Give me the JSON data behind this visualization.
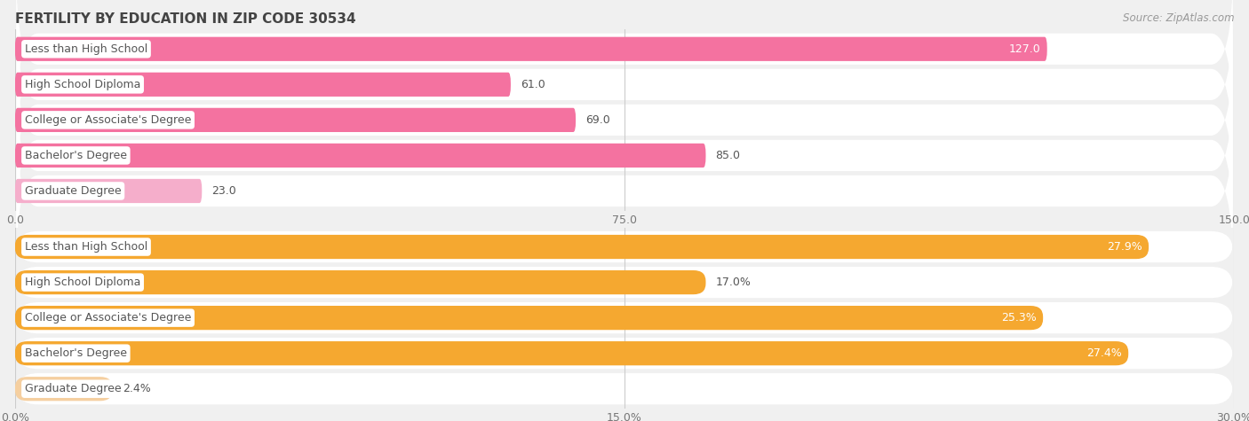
{
  "title": "FERTILITY BY EDUCATION IN ZIP CODE 30534",
  "source": "Source: ZipAtlas.com",
  "top_chart": {
    "categories": [
      "Less than High School",
      "High School Diploma",
      "College or Associate's Degree",
      "Bachelor's Degree",
      "Graduate Degree"
    ],
    "values": [
      127.0,
      61.0,
      69.0,
      85.0,
      23.0
    ],
    "value_labels": [
      "127.0",
      "61.0",
      "69.0",
      "85.0",
      "23.0"
    ],
    "bar_color": "#F472A0",
    "light_bar_color": "#F5AECB",
    "xlim": [
      0,
      150
    ],
    "xticks": [
      0.0,
      75.0,
      150.0
    ],
    "xtick_labels": [
      "0.0",
      "75.0",
      "150.0"
    ],
    "value_inside": [
      true,
      false,
      false,
      false,
      false
    ]
  },
  "bottom_chart": {
    "categories": [
      "Less than High School",
      "High School Diploma",
      "College or Associate's Degree",
      "Bachelor's Degree",
      "Graduate Degree"
    ],
    "values": [
      27.9,
      17.0,
      25.3,
      27.4,
      2.4
    ],
    "value_labels": [
      "27.9%",
      "17.0%",
      "25.3%",
      "27.4%",
      "2.4%"
    ],
    "bar_color": "#F5A830",
    "light_bar_color": "#F5CFA0",
    "xlim": [
      0,
      30
    ],
    "xticks": [
      0.0,
      15.0,
      30.0
    ],
    "xtick_labels": [
      "0.0%",
      "15.0%",
      "30.0%"
    ],
    "value_inside": [
      true,
      false,
      true,
      true,
      false
    ]
  },
  "bar_height": 0.68,
  "label_fontsize": 9,
  "value_fontsize": 9,
  "tick_fontsize": 9,
  "title_fontsize": 11,
  "source_fontsize": 8.5,
  "bg_color": "#f0f0f0",
  "row_bg_color": "#f8f8f8",
  "grid_color": "#cccccc",
  "label_text_color": "#555555",
  "value_inside_color": "#ffffff",
  "value_outside_color": "#555555"
}
